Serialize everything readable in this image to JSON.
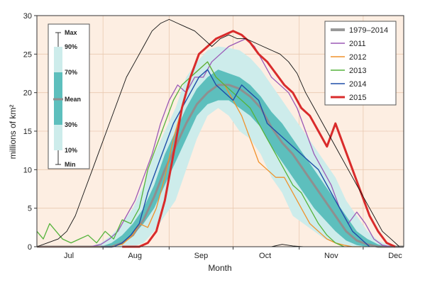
{
  "chart_data": {
    "type": "line",
    "title": "",
    "xlabel": "Month",
    "ylabel": "millions of km²",
    "ylim": [
      0,
      30
    ],
    "yticks": [
      0,
      5,
      10,
      15,
      20,
      25,
      30
    ],
    "xlim": [
      0,
      172
    ],
    "xtick_labels": [
      {
        "label": "Jul",
        "x": 15
      },
      {
        "label": "Aug",
        "x": 46
      },
      {
        "label": "Sep",
        "x": 77
      },
      {
        "label": "Oct",
        "x": 107
      },
      {
        "label": "Nov",
        "x": 138
      },
      {
        "label": "Dec",
        "x": 168
      }
    ],
    "month_boundaries": [
      31,
      62,
      92,
      123,
      153
    ],
    "grid": true,
    "legend": {
      "position": "top-right",
      "entries": [
        {
          "name": "1979–2014",
          "color": "#999999"
        },
        {
          "name": "2011",
          "color": "#9b59b6"
        },
        {
          "name": "2012",
          "color": "#f0922c"
        },
        {
          "name": "2013",
          "color": "#55b33b"
        },
        {
          "name": "2014",
          "color": "#1f4fa8"
        },
        {
          "name": "2015",
          "color": "#d92b2b"
        }
      ]
    },
    "band_legend": {
      "position": "left",
      "labels": [
        "Max",
        "90%",
        "70%",
        "Mean",
        "30%",
        "10%",
        "Min"
      ]
    },
    "bands": {
      "x": [
        0,
        10,
        20,
        25,
        30,
        35,
        40,
        45,
        50,
        55,
        60,
        65,
        70,
        75,
        80,
        85,
        90,
        95,
        100,
        105,
        110,
        115,
        120,
        125,
        130,
        135,
        140,
        145,
        150,
        155,
        160,
        165,
        172
      ],
      "p10": [
        0,
        0,
        0,
        0,
        0,
        0,
        0,
        0,
        0.5,
        2,
        4,
        6,
        10,
        14,
        17,
        18,
        17,
        15,
        14,
        12,
        9,
        7,
        4,
        3,
        2,
        1,
        0.5,
        0.2,
        0,
        0,
        0,
        0,
        0
      ],
      "p30": [
        0,
        0,
        0,
        0,
        0,
        0,
        0.5,
        1.5,
        3,
        5,
        8,
        11,
        14,
        17,
        18.5,
        19,
        19,
        18,
        17,
        15.5,
        13,
        11,
        9,
        7,
        5,
        3.5,
        2,
        0.8,
        0.2,
        0,
        0,
        0,
        0
      ],
      "p70": [
        0,
        0,
        0,
        0,
        0,
        0.5,
        1.5,
        3,
        5,
        8,
        12,
        15,
        18,
        20.5,
        22,
        23,
        22.5,
        22,
        21,
        19.5,
        17.5,
        16,
        14,
        12,
        10,
        8,
        6,
        4,
        2,
        1,
        0.3,
        0,
        0
      ],
      "p90": [
        0,
        0,
        0,
        0,
        0.5,
        1.5,
        3,
        5,
        8,
        12,
        15,
        18,
        22,
        24,
        25.5,
        26,
        25.8,
        25.5,
        24.5,
        23,
        21,
        19,
        17,
        15,
        13,
        11,
        9,
        6,
        4,
        2,
        0.8,
        0.2,
        0
      ],
      "mean": [
        0,
        0,
        0,
        0,
        0,
        0,
        0.5,
        1.5,
        3.5,
        6.5,
        10,
        13,
        16,
        18.5,
        20,
        21,
        21,
        20.5,
        19.5,
        18,
        15.5,
        13.5,
        12,
        10,
        8,
        6,
        4,
        2,
        0.8,
        0.3,
        0,
        0,
        0
      ]
    },
    "series": [
      {
        "name": "2011",
        "x": [
          0,
          15,
          25,
          30,
          34,
          38,
          42,
          46,
          50,
          54,
          58,
          62,
          66,
          70,
          74,
          78,
          82,
          86,
          90,
          94,
          98,
          102,
          106,
          110,
          114,
          118,
          122,
          126,
          130,
          134,
          138,
          142,
          146,
          150,
          154,
          158,
          162,
          166
        ],
        "y": [
          0,
          0,
          0,
          0.3,
          1,
          2,
          4,
          6,
          9,
          12,
          16,
          19,
          21,
          20,
          22,
          22,
          24,
          25,
          26,
          26.5,
          27,
          26,
          24,
          22,
          21,
          20,
          18,
          15,
          12,
          10,
          8,
          5,
          3,
          4.5,
          3,
          1,
          0.2,
          0
        ]
      },
      {
        "name": "2012",
        "x": [
          0,
          20,
          30,
          35,
          40,
          45,
          48,
          52,
          56,
          60,
          64,
          68,
          72,
          76,
          80,
          84,
          88,
          92,
          96,
          100,
          104,
          108,
          112,
          116,
          120,
          124,
          128,
          132,
          136,
          140,
          144,
          148,
          152
        ],
        "y": [
          0,
          0,
          0,
          0,
          0.3,
          1.5,
          3,
          2.5,
          5,
          9,
          14,
          18,
          22,
          23,
          24,
          22,
          21,
          19,
          17,
          14,
          11,
          10,
          9,
          9,
          7,
          5,
          3,
          2,
          1,
          0.5,
          0.2,
          0,
          0
        ]
      },
      {
        "name": "2013",
        "x": [
          0,
          3,
          6,
          9,
          12,
          16,
          20,
          24,
          28,
          32,
          36,
          40,
          44,
          48,
          52,
          56,
          60,
          64,
          68,
          72,
          76,
          80,
          84,
          88,
          92,
          96,
          100,
          104,
          108,
          112,
          116,
          120,
          124,
          128,
          132,
          136,
          140,
          144
        ],
        "y": [
          2,
          1,
          3,
          2,
          1,
          0.5,
          1,
          1.5,
          0.5,
          2,
          1,
          3.5,
          3,
          5,
          10,
          13,
          16,
          19,
          21,
          22,
          23,
          24,
          22,
          21,
          20,
          19,
          18,
          16,
          14,
          12,
          10,
          8,
          7,
          5,
          3,
          1.5,
          0.5,
          0
        ]
      },
      {
        "name": "2014",
        "x": [
          30,
          36,
          40,
          44,
          48,
          52,
          56,
          60,
          64,
          68,
          72,
          76,
          80,
          84,
          88,
          92,
          96,
          100,
          104,
          108,
          112,
          116,
          120,
          124,
          128,
          132,
          136,
          140,
          144,
          148,
          152,
          156
        ],
        "y": [
          0,
          0,
          0.5,
          1.5,
          3,
          7,
          10,
          13,
          16,
          18,
          20,
          22,
          23,
          21,
          20,
          19,
          21,
          20,
          19,
          16,
          15,
          14,
          13,
          12,
          11,
          10,
          8,
          6,
          4,
          2,
          1,
          0
        ]
      },
      {
        "name": "2015",
        "x": [
          40,
          48,
          52,
          56,
          60,
          64,
          68,
          72,
          76,
          80,
          84,
          88,
          92,
          96,
          100,
          104,
          108,
          112,
          116,
          120,
          124,
          128,
          132,
          136,
          140,
          144,
          148,
          152,
          156,
          160,
          164,
          168
        ],
        "y": [
          0,
          0,
          0.5,
          2,
          6,
          12,
          18,
          22,
          25,
          26,
          27,
          27.5,
          28,
          27.5,
          26.5,
          25,
          24,
          22.5,
          21,
          20,
          18,
          17,
          15,
          13,
          16,
          13,
          10,
          7,
          4,
          2,
          0.5,
          0
        ]
      },
      {
        "name": "Max",
        "x": [
          0,
          5,
          10,
          14,
          18,
          22,
          26,
          30,
          34,
          38,
          42,
          46,
          50,
          54,
          58,
          62,
          66,
          70,
          74,
          78,
          82,
          86,
          90,
          94,
          98,
          102,
          106,
          110,
          114,
          118,
          122,
          126,
          130,
          134,
          138,
          142,
          146,
          150,
          154,
          158,
          162,
          166,
          170
        ],
        "y": [
          0,
          0.5,
          1,
          2,
          4,
          7,
          10,
          13,
          16,
          19,
          22,
          24,
          26,
          28,
          29,
          29.5,
          29,
          28.5,
          28,
          27,
          26,
          27,
          27.5,
          27,
          27,
          26.5,
          26,
          25.5,
          25,
          24,
          22.5,
          20,
          18,
          16,
          14,
          12,
          10,
          8,
          6,
          4,
          2,
          1,
          0
        ]
      },
      {
        "name": "Min",
        "x": [
          0,
          50,
          100,
          110,
          115,
          120,
          125,
          172
        ],
        "y": [
          0,
          0,
          0,
          0,
          0.3,
          0.1,
          0,
          0
        ]
      }
    ]
  }
}
